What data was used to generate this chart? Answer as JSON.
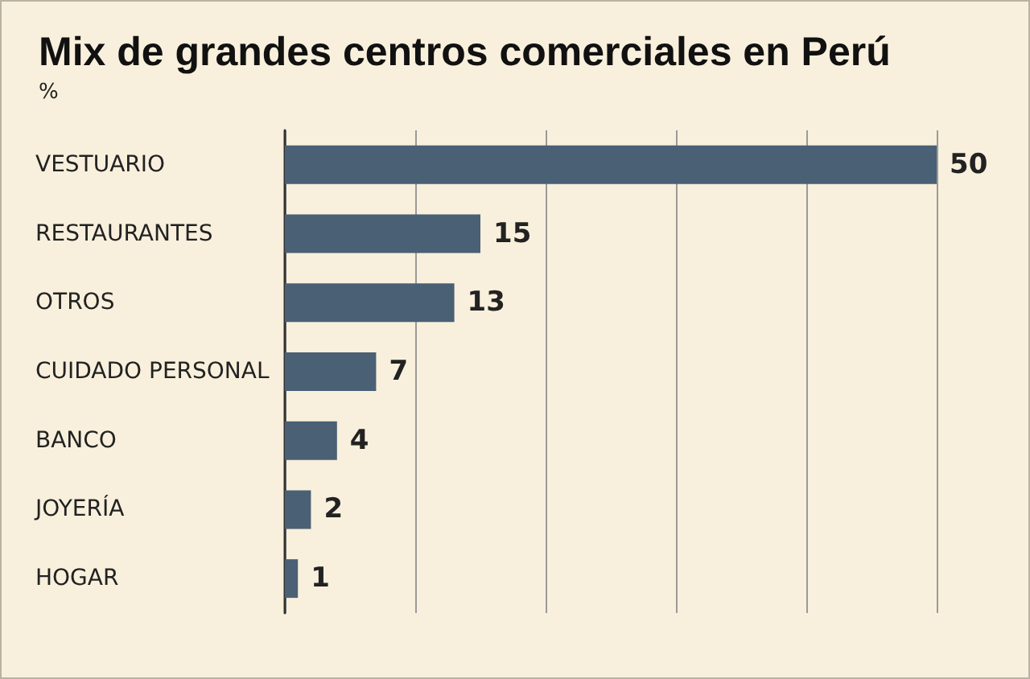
{
  "chart_data": {
    "type": "bar",
    "orientation": "horizontal",
    "title": "Mix de grandes centros comerciales en Perú",
    "subtitle": "%",
    "categories": [
      "VESTUARIO",
      "RESTAURANTES",
      "OTROS",
      "CUIDADO PERSONAL",
      "BANCO",
      "JOYERÍA",
      "HOGAR"
    ],
    "values": [
      50,
      15,
      13,
      7,
      4,
      2,
      1
    ],
    "color": "#4a6075",
    "data_labels": true,
    "xlim": [
      0,
      50
    ],
    "xticks": [
      {
        "value": 0,
        "label": null
      },
      {
        "value": 10,
        "label": null
      },
      {
        "value": 20,
        "label": null
      },
      {
        "value": 30,
        "label": null
      },
      {
        "value": 40,
        "label": null
      },
      {
        "value": 50,
        "label": null
      }
    ],
    "grid": "x",
    "tick_labels": "y"
  }
}
